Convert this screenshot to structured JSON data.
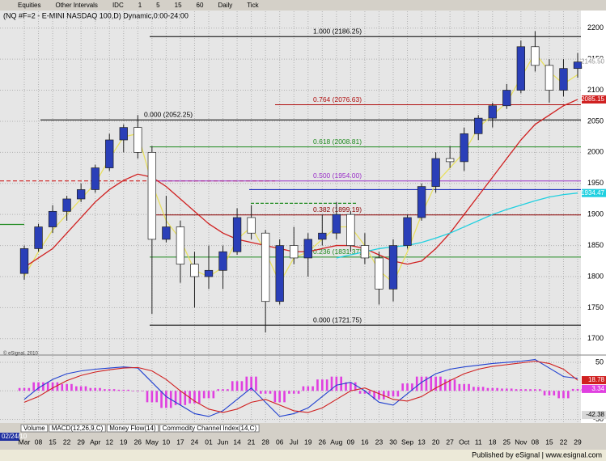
{
  "chart_data": {
    "type": "candlestick",
    "title": "(NQ #F=2 - E-MINI NASDAQ 100,D) Dynamic,0:00-24:00",
    "toolbar": [
      "Equities",
      "Other Intervals",
      "IDC",
      "1",
      "5",
      "15",
      "60",
      "Daily",
      "Tick"
    ],
    "tabs": [
      "Volume",
      "MACD(12,26,9,C)",
      "Money Flow(14)",
      "Commodity Channel Index(14,C)"
    ],
    "footer": "Published by eSignal | www.esignal.com",
    "start_date": "02/24/10",
    "copyright": "© eSignal, 2010",
    "categories": [
      "Mar",
      "08",
      "15",
      "22",
      "29",
      "Apr",
      "12",
      "19",
      "26",
      "May",
      "10",
      "17",
      "24",
      "01",
      "Jun",
      "14",
      "21",
      "28",
      "06",
      "Jul",
      "19",
      "26",
      "Aug",
      "09",
      "16",
      "23",
      "30",
      "Sep",
      "13",
      "20",
      "27",
      "Oct",
      "11",
      "18",
      "25",
      "Nov",
      "08",
      "15",
      "22",
      "29"
    ],
    "ohlc": {
      "up_color": "#2a3fb8",
      "down_color": "#ffffff",
      "open": [
        1805,
        1845,
        1880,
        1905,
        1925,
        1940,
        1975,
        2020,
        2040,
        2000,
        1860,
        1880,
        1820,
        1800,
        1810,
        1840,
        1895,
        1870,
        1760,
        1850,
        1830,
        1860,
        1870,
        1900,
        1850,
        1830,
        1780,
        1850,
        1895,
        1945,
        1990,
        1985,
        2030,
        2055,
        2075,
        2100,
        2170,
        2140,
        2100,
        2135
      ],
      "high": [
        1850,
        1885,
        1915,
        1930,
        1950,
        1980,
        2030,
        2045,
        2060,
        2010,
        1930,
        1890,
        1840,
        1850,
        1850,
        1910,
        1915,
        1875,
        1860,
        1880,
        1870,
        1900,
        1920,
        1905,
        1870,
        1840,
        1860,
        1900,
        1950,
        2000,
        2010,
        2040,
        2060,
        2080,
        2110,
        2180,
        2195,
        2150,
        2150,
        2160
      ],
      "low": [
        1795,
        1840,
        1870,
        1890,
        1920,
        1935,
        1970,
        2000,
        1990,
        1740,
        1855,
        1790,
        1750,
        1780,
        1780,
        1835,
        1860,
        1710,
        1755,
        1820,
        1800,
        1850,
        1860,
        1840,
        1820,
        1755,
        1760,
        1845,
        1890,
        1935,
        1975,
        1970,
        2020,
        2040,
        2070,
        2095,
        2130,
        2080,
        2090,
        2120
      ],
      "close": [
        1845,
        1880,
        1905,
        1925,
        1940,
        1975,
        2020,
        2040,
        2000,
        1860,
        1880,
        1820,
        1800,
        1810,
        1840,
        1895,
        1870,
        1760,
        1850,
        1830,
        1860,
        1870,
        1900,
        1850,
        1830,
        1780,
        1850,
        1895,
        1945,
        1990,
        1985,
        2030,
        2055,
        2075,
        2100,
        2170,
        2140,
        2100,
        2135,
        2145.5
      ]
    },
    "last_price": {
      "value": 2145.5,
      "label": "2145.50"
    },
    "lines": [
      {
        "color": "#e8e060",
        "values": [
          1800,
          1840,
          1875,
          1900,
          1925,
          1950,
          1990,
          2025,
          2030,
          1950,
          1890,
          1860,
          1810,
          1800,
          1815,
          1860,
          1880,
          1840,
          1790,
          1830,
          1840,
          1860,
          1880,
          1880,
          1850,
          1810,
          1790,
          1840,
          1900,
          1950,
          1975,
          2000,
          2040,
          2060,
          2080,
          2120,
          2160,
          2130,
          2110,
          2125
        ]
      },
      {
        "color": "#d02020",
        "values": [
          1815,
          1830,
          1845,
          1870,
          1895,
          1920,
          1940,
          1955,
          1965,
          1960,
          1945,
          1925,
          1905,
          1885,
          1870,
          1860,
          1855,
          1850,
          1845,
          1840,
          1840,
          1845,
          1850,
          1850,
          1845,
          1835,
          1825,
          1820,
          1825,
          1845,
          1870,
          1900,
          1930,
          1960,
          1990,
          2020,
          2045,
          2060,
          2075,
          2085.15
        ]
      },
      {
        "color": "#20d0e0",
        "values": [
          null,
          null,
          null,
          null,
          null,
          null,
          null,
          null,
          null,
          null,
          null,
          null,
          null,
          null,
          null,
          null,
          null,
          null,
          null,
          null,
          null,
          null,
          1830,
          1835,
          1840,
          1845,
          1848,
          1850,
          1855,
          1862,
          1870,
          1880,
          1890,
          1900,
          1908,
          1915,
          1922,
          1928,
          1932,
          1934.47
        ]
      }
    ],
    "fib_levels": [
      {
        "value": 2186.25,
        "label": "1.000 (2186.25)",
        "color": "#000000"
      },
      {
        "value": 2076.63,
        "label": "0.764 (2076.63)",
        "color": "#b01010"
      },
      {
        "value": 2052.25,
        "label": "0.000 (2052.25)",
        "color": "#000000"
      },
      {
        "value": 2008.81,
        "label": "0.618 (2008.81)",
        "color": "#1f8a1f"
      },
      {
        "value": 1954.0,
        "label": "0.500 (1954.00)",
        "color": "#9a30c8"
      },
      {
        "value": 1899.19,
        "label": "0.382 (1899.19)",
        "color": "#8b0000"
      },
      {
        "value": 1831.37,
        "label": "0.236 (1831.37)",
        "color": "#1f8a1f"
      },
      {
        "value": 1721.75,
        "label": "0.000 (1721.75)",
        "color": "#000000"
      }
    ],
    "levels": [
      {
        "value": 1940,
        "color": "#2030c0"
      },
      {
        "value": 1954,
        "color": "#d02020"
      },
      {
        "value": 1884,
        "color": "#1f8a1f"
      },
      {
        "value": 1918,
        "color": "#1f8a1f"
      }
    ],
    "ylim": [
      1675,
      2227
    ],
    "yticks": [
      1700,
      1750,
      1800,
      1850,
      1900,
      1950,
      2000,
      2050,
      2100,
      2150,
      2200
    ],
    "macd": {
      "series": [
        {
          "color": "#2040d0",
          "values": [
            -15,
            5,
            20,
            30,
            35,
            38,
            40,
            42,
            40,
            15,
            -10,
            -25,
            -40,
            -45,
            -35,
            -15,
            5,
            -20,
            -45,
            -40,
            -30,
            -10,
            10,
            15,
            0,
            -20,
            -25,
            -5,
            15,
            30,
            38,
            42,
            45,
            48,
            50,
            52,
            55,
            40,
            25,
            22
          ]
        },
        {
          "color": "#d02020",
          "values": [
            -20,
            -10,
            5,
            18,
            27,
            33,
            37,
            40,
            41,
            35,
            20,
            0,
            -18,
            -32,
            -38,
            -32,
            -20,
            -15,
            -25,
            -35,
            -38,
            -30,
            -15,
            0,
            5,
            -5,
            -15,
            -18,
            -10,
            5,
            18,
            30,
            38,
            43,
            46,
            49,
            52,
            48,
            38,
            18.78
          ]
        }
      ],
      "histogram": {
        "color": "#e040e0",
        "values": [
          5,
          15,
          15,
          12,
          8,
          5,
          3,
          2,
          -1,
          -20,
          -30,
          -25,
          -22,
          -13,
          3,
          17,
          25,
          -5,
          -20,
          -5,
          8,
          20,
          25,
          15,
          -5,
          -15,
          -10,
          13,
          25,
          25,
          20,
          12,
          7,
          5,
          4,
          3,
          3,
          -8,
          -13,
          3.34
        ]
      },
      "min_tag": -42.38
    },
    "y2lim": [
      -55,
      60
    ],
    "y2ticks": [
      -50,
      0,
      50
    ],
    "grid": true
  }
}
